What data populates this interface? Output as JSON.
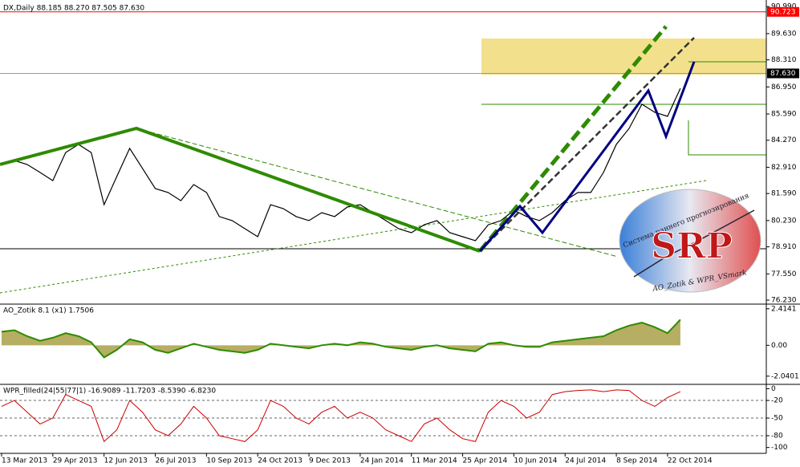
{
  "chart_data": [
    {
      "type": "line",
      "title": "DX,Daily  88.185 88.270 87.505 87.630",
      "color": "#000000",
      "categories": [
        "13 Mar 2013",
        null,
        null,
        null,
        "29 Apr 2013",
        null,
        null,
        null,
        "12 Jun 2013",
        null,
        null,
        null,
        "26 Jul 2013",
        null,
        null,
        null,
        "10 Sep 2013",
        null,
        null,
        null,
        "24 Oct 2013",
        null,
        null,
        null,
        "9 Dec 2013",
        null,
        null,
        null,
        "24 Jan 2014",
        null,
        null,
        null,
        "11 Mar 2014",
        null,
        null,
        null,
        "25 Apr 2014",
        null,
        null,
        null,
        "10 Jun 2014",
        null,
        null,
        null,
        "24 Jul 2014",
        null,
        null,
        null,
        "8 Sep 2014",
        null,
        null,
        null,
        "22 Oct 2014",
        null
      ],
      "values": [
        83.05,
        83.25,
        83.05,
        82.65,
        82.24,
        83.65,
        84.06,
        83.65,
        81.03,
        82.45,
        83.86,
        82.85,
        81.84,
        81.64,
        81.23,
        82.04,
        81.64,
        80.43,
        80.23,
        79.82,
        79.42,
        81.03,
        80.83,
        80.43,
        80.23,
        80.63,
        80.43,
        80.91,
        81.03,
        80.63,
        80.23,
        79.82,
        79.62,
        80.02,
        80.23,
        79.62,
        79.42,
        79.22,
        80.02,
        80.23,
        80.75,
        80.43,
        80.23,
        80.63,
        81.23,
        81.64,
        81.64,
        82.65,
        84.06,
        84.86,
        86.08,
        85.67,
        85.47,
        86.88
      ],
      "ylim": [
        76.07,
        91.32
      ],
      "yticks": [
        {
          "value": 90.99,
          "label": "90.990"
        },
        {
          "value": 89.63,
          "label": "89.630"
        },
        {
          "value": 88.31,
          "label": "88.310"
        },
        {
          "value": 86.95,
          "label": "86.950"
        },
        {
          "value": 85.59,
          "label": "85.590"
        },
        {
          "value": 84.27,
          "label": "84.270"
        },
        {
          "value": 82.91,
          "label": "82.910"
        },
        {
          "value": 81.59,
          "label": "81.590"
        },
        {
          "value": 80.23,
          "label": "80.230"
        },
        {
          "value": 78.91,
          "label": "78.910"
        },
        {
          "value": 77.55,
          "label": "77.550"
        },
        {
          "value": 76.23,
          "label": "76.230"
        }
      ],
      "levels": [
        {
          "value": 90.723,
          "color": "#ff0000"
        },
        {
          "value": {
            "value": 87.63,
            "label": "87.630"
          },
          "color": "#000000"
        }
      ]
    },
    {
      "type": "area",
      "title": "AO_Zotik 8.1 (x1) 1.7506",
      "color": "#2e8b00",
      "fill": "#a39a3c",
      "values": [
        0.9,
        1.0,
        0.6,
        0.3,
        0.5,
        0.8,
        0.6,
        0.2,
        -0.8,
        -0.3,
        0.4,
        0.2,
        -0.3,
        -0.5,
        -0.2,
        0.1,
        -0.1,
        -0.3,
        -0.4,
        -0.5,
        -0.3,
        0.1,
        0.0,
        -0.1,
        -0.2,
        0.0,
        0.1,
        0.0,
        0.2,
        0.1,
        -0.1,
        -0.2,
        -0.3,
        -0.1,
        0.0,
        -0.2,
        -0.3,
        -0.4,
        0.1,
        0.2,
        0.0,
        -0.1,
        -0.1,
        0.2,
        0.3,
        0.4,
        0.5,
        0.6,
        1.0,
        1.3,
        1.5,
        1.2,
        0.8,
        1.7
      ],
      "ylim": [
        -2.53,
        2.67
      ],
      "yticks": [
        2.4141,
        {
          "value": 0,
          "label": "0.00"
        },
        -2.0401
      ]
    },
    {
      "type": "line",
      "title": "WPR_filled(24|55|77|1) -16.9089 -11.7203 -8.5390 -6.8230",
      "color": "#cc0000",
      "values": [
        -30,
        -20,
        -40,
        -60,
        -50,
        -10,
        -20,
        -30,
        -90,
        -70,
        -20,
        -40,
        -70,
        -80,
        -60,
        -30,
        -50,
        -80,
        -85,
        -90,
        -70,
        -20,
        -30,
        -50,
        -60,
        -40,
        -30,
        -50,
        -40,
        -50,
        -70,
        -80,
        -90,
        -60,
        -50,
        -70,
        -85,
        -90,
        -40,
        -20,
        -30,
        -50,
        -40,
        -10,
        -5,
        -3,
        -2,
        -5,
        -2,
        -3,
        -20,
        -30,
        -15,
        -5
      ],
      "ylim": [
        -110,
        6
      ],
      "yticks": [
        0,
        -20,
        -50,
        -80,
        -100
      ],
      "grid": true
    }
  ],
  "logo": {
    "caption": "Система раннего прогнозирования",
    "mark": "SRP",
    "authors": "AO_Zotik & WPR_VSmark"
  }
}
